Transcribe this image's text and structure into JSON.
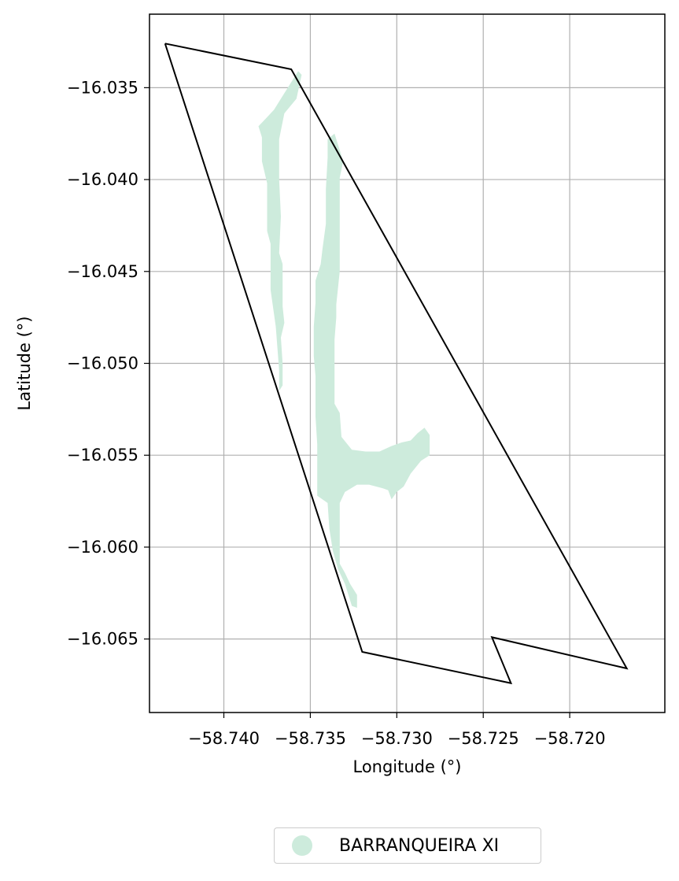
{
  "chart_data": {
    "type": "map",
    "xlabel": "Longitude (°)",
    "ylabel": "Latitude (°)",
    "xlim": [
      -58.7443,
      -58.7145
    ],
    "ylim": [
      -16.069,
      -16.031
    ],
    "x_ticks": [
      -58.74,
      -58.735,
      -58.73,
      -58.725,
      -58.72
    ],
    "x_tick_labels": [
      "−58.740",
      "−58.735",
      "−58.730",
      "−58.725",
      "−58.720"
    ],
    "y_ticks": [
      -16.035,
      -16.04,
      -16.045,
      -16.05,
      -16.055,
      -16.06,
      -16.065
    ],
    "y_tick_labels": [
      "−16.035",
      "−16.040",
      "−16.045",
      "−16.050",
      "−16.055",
      "−16.060",
      "−16.065"
    ],
    "grid": true,
    "legend_position": "bottom-center",
    "boundary_color": "#000000",
    "fill_color": "#cdebdc",
    "boundary": [
      [
        -58.7434,
        -16.0326
      ],
      [
        -58.7361,
        -16.034
      ],
      [
        -58.7167,
        -16.0666
      ],
      [
        -58.7245,
        -16.0649
      ],
      [
        -58.7234,
        -16.0674
      ],
      [
        -58.732,
        -16.0657
      ],
      [
        -58.7434,
        -16.0326
      ]
    ],
    "regions": [
      {
        "name": "BARRANQUEIRA XI",
        "polygons": [
          [
            [
              -58.7357,
              -16.0341
            ],
            [
              -58.7367,
              -16.0356
            ],
            [
              -58.7371,
              -16.0362
            ],
            [
              -58.7376,
              -16.0367
            ],
            [
              -58.738,
              -16.0371
            ],
            [
              -58.7378,
              -16.0377
            ],
            [
              -58.7378,
              -16.039
            ],
            [
              -58.7375,
              -16.0402
            ],
            [
              -58.7375,
              -16.0428
            ],
            [
              -58.7373,
              -16.0435
            ],
            [
              -58.7373,
              -16.046
            ],
            [
              -58.737,
              -16.048
            ],
            [
              -58.7368,
              -16.0504
            ],
            [
              -58.7368,
              -16.0515
            ],
            [
              -58.7366,
              -16.0512
            ],
            [
              -58.7366,
              -16.05
            ],
            [
              -58.7367,
              -16.0486
            ],
            [
              -58.7365,
              -16.0478
            ],
            [
              -58.7366,
              -16.0469
            ],
            [
              -58.7366,
              -16.045
            ],
            [
              -58.7366,
              -16.0446
            ],
            [
              -58.7368,
              -16.044
            ],
            [
              -58.7367,
              -16.042
            ],
            [
              -58.7368,
              -16.04
            ],
            [
              -58.7368,
              -16.0378
            ],
            [
              -58.7365,
              -16.0364
            ],
            [
              -58.7358,
              -16.0356
            ],
            [
              -58.7355,
              -16.0343
            ],
            [
              -58.7357,
              -16.0341
            ]
          ],
          [
            [
              -58.7336,
              -16.0375
            ],
            [
              -58.7333,
              -16.0384
            ],
            [
              -58.7331,
              -16.039
            ],
            [
              -58.7333,
              -16.0399
            ],
            [
              -58.7333,
              -16.0412
            ],
            [
              -58.7333,
              -16.0424
            ],
            [
              -58.7333,
              -16.0438
            ],
            [
              -58.7333,
              -16.045
            ],
            [
              -58.7334,
              -16.0459
            ],
            [
              -58.7335,
              -16.0468
            ],
            [
              -58.7335,
              -16.0475
            ],
            [
              -58.7336,
              -16.0487
            ],
            [
              -58.7336,
              -16.0506
            ],
            [
              -58.7336,
              -16.0522
            ],
            [
              -58.7333,
              -16.0527
            ],
            [
              -58.7332,
              -16.054
            ],
            [
              -58.7326,
              -16.0547
            ],
            [
              -58.7318,
              -16.0548
            ],
            [
              -58.731,
              -16.0548
            ],
            [
              -58.7303,
              -16.0545
            ],
            [
              -58.7297,
              -16.0543
            ],
            [
              -58.7292,
              -16.0542
            ],
            [
              -58.7288,
              -16.0538
            ],
            [
              -58.7284,
              -16.0535
            ],
            [
              -58.7281,
              -16.0539
            ],
            [
              -58.7281,
              -16.0546
            ],
            [
              -58.7281,
              -16.055
            ],
            [
              -58.7286,
              -16.0553
            ],
            [
              -58.7292,
              -16.056
            ],
            [
              -58.7296,
              -16.0567
            ],
            [
              -58.73,
              -16.057
            ],
            [
              -58.7303,
              -16.0574
            ],
            [
              -58.7305,
              -16.0569
            ],
            [
              -58.7308,
              -16.0568
            ],
            [
              -58.7316,
              -16.0566
            ],
            [
              -58.7323,
              -16.0566
            ],
            [
              -58.733,
              -16.057
            ],
            [
              -58.7333,
              -16.0576
            ],
            [
              -58.7333,
              -16.0588
            ],
            [
              -58.7333,
              -16.0602
            ],
            [
              -58.7333,
              -16.0609
            ],
            [
              -58.733,
              -16.0614
            ],
            [
              -58.7327,
              -16.062
            ],
            [
              -58.7323,
              -16.0626
            ],
            [
              -58.7323,
              -16.0633
            ],
            [
              -58.7326,
              -16.0632
            ],
            [
              -58.7328,
              -16.0626
            ],
            [
              -58.733,
              -16.062
            ],
            [
              -58.7334,
              -16.0612
            ],
            [
              -58.7337,
              -16.0602
            ],
            [
              -58.7339,
              -16.059
            ],
            [
              -58.734,
              -16.0576
            ],
            [
              -58.7346,
              -16.0572
            ],
            [
              -58.7346,
              -16.0557
            ],
            [
              -58.7346,
              -16.0544
            ],
            [
              -58.7347,
              -16.0529
            ],
            [
              -58.7347,
              -16.0507
            ],
            [
              -58.7348,
              -16.0496
            ],
            [
              -58.7348,
              -16.048
            ],
            [
              -58.7347,
              -16.0467
            ],
            [
              -58.7347,
              -16.0455
            ],
            [
              -58.7344,
              -16.0446
            ],
            [
              -58.7343,
              -16.0438
            ],
            [
              -58.7341,
              -16.0424
            ],
            [
              -58.7341,
              -16.0405
            ],
            [
              -58.734,
              -16.0388
            ],
            [
              -58.734,
              -16.0378
            ],
            [
              -58.7336,
              -16.0375
            ]
          ]
        ]
      }
    ]
  },
  "legend": {
    "label": "BARRANQUEIRA XI",
    "color": "#cdebdc"
  }
}
